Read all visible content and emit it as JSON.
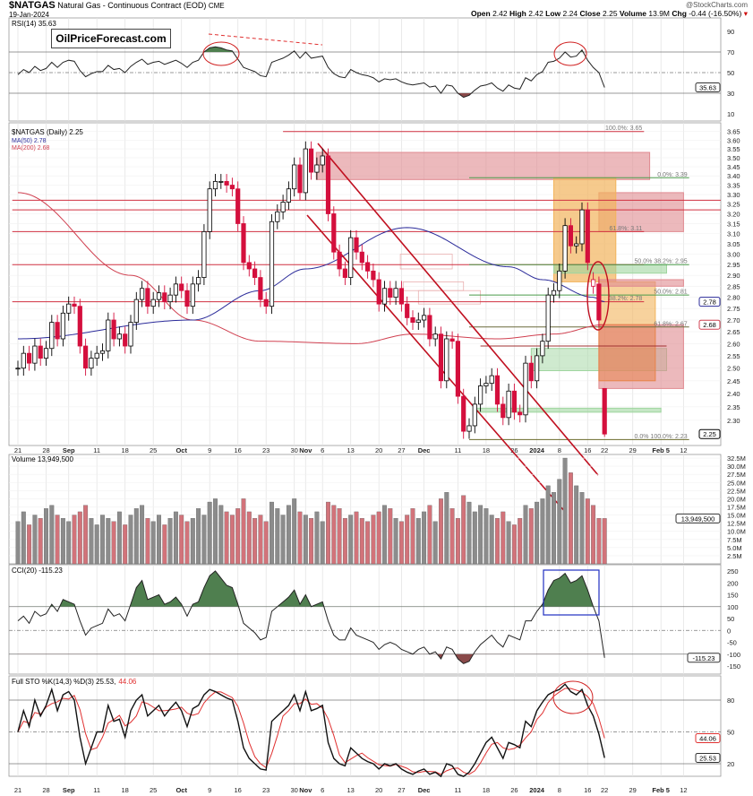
{
  "header": {
    "symbol": "$NATGAS",
    "name": "Natural Gas - Continuous Contract (EOD)",
    "exchange": "CME",
    "date": "19-Jan-2024",
    "watermark": "@StockCharts.com",
    "open_label": "Open",
    "open": "2.42",
    "high_label": "High",
    "high": "2.42",
    "low_label": "Low",
    "low": "2.24",
    "close_label": "Close",
    "close": "2.25",
    "volume_label": "Volume",
    "volume": "13.9M",
    "chg_label": "Chg",
    "chg": "-0.44 (-16.50%)"
  },
  "logo": "OilPriceForecast.com",
  "panels": {
    "rsi": {
      "label": "RSI(14) 35.63"
    },
    "price": {
      "label": "$NATGAS (Daily) 2.25",
      "ma50": "MA(50) 2.78",
      "ma200": "MA(200) 2.68"
    },
    "volume": {
      "label": "Volume 13,949,500"
    },
    "cci": {
      "label": "CCI(20) -115.23"
    },
    "sto": {
      "label": "Full STO %K(14,3) %D(3) 25.53,",
      "label_d": "44.06"
    }
  },
  "chart_data": {
    "type": "candlestick",
    "title": "$NATGAS Natural Gas - Continuous Contract (EOD) Daily",
    "x_ticks": [
      {
        "label": "21",
        "i": 0
      },
      {
        "label": "28",
        "i": 5
      },
      {
        "label": "Sep",
        "i": 9
      },
      {
        "label": "11",
        "i": 14
      },
      {
        "label": "18",
        "i": 19
      },
      {
        "label": "25",
        "i": 24
      },
      {
        "label": "Oct",
        "i": 29
      },
      {
        "label": "9",
        "i": 34
      },
      {
        "label": "16",
        "i": 39
      },
      {
        "label": "23",
        "i": 44
      },
      {
        "label": "30",
        "i": 49
      },
      {
        "label": "Nov",
        "i": 51
      },
      {
        "label": "6",
        "i": 54
      },
      {
        "label": "13",
        "i": 59
      },
      {
        "label": "20",
        "i": 64
      },
      {
        "label": "27",
        "i": 68
      },
      {
        "label": "Dec",
        "i": 72
      },
      {
        "label": "11",
        "i": 78
      },
      {
        "label": "18",
        "i": 83
      },
      {
        "label": "26",
        "i": 88
      },
      {
        "label": "2024",
        "i": 92
      },
      {
        "label": "8",
        "i": 96
      },
      {
        "label": "16",
        "i": 101
      },
      {
        "label": "22",
        "i": 104
      },
      {
        "label": "29",
        "i": 109
      },
      {
        "label": "Feb 5",
        "i": 114
      },
      {
        "label": "12",
        "i": 118
      }
    ],
    "price": {
      "scale": "log",
      "ticks": [
        "3.65",
        "3.60",
        "3.55",
        "3.50",
        "3.45",
        "3.40",
        "3.35",
        "3.30",
        "3.25",
        "3.20",
        "3.15",
        "3.10",
        "3.05",
        "3.00",
        "2.95",
        "2.90",
        "2.85",
        "2.80",
        "2.75",
        "2.70",
        "2.65",
        "2.60",
        "2.55",
        "2.50",
        "2.45",
        "2.40",
        "2.35",
        "2.30"
      ],
      "closes": [
        2.5,
        2.56,
        2.52,
        2.59,
        2.54,
        2.58,
        2.69,
        2.62,
        2.73,
        2.77,
        2.76,
        2.59,
        2.5,
        2.54,
        2.56,
        2.57,
        2.7,
        2.62,
        2.64,
        2.59,
        2.69,
        2.79,
        2.84,
        2.76,
        2.79,
        2.82,
        2.78,
        2.81,
        2.86,
        2.83,
        2.76,
        2.86,
        2.89,
        3.11,
        3.33,
        3.37,
        3.37,
        3.35,
        3.33,
        3.15,
        2.96,
        2.93,
        2.89,
        2.79,
        2.76,
        3.16,
        3.21,
        3.26,
        3.33,
        3.46,
        3.31,
        3.55,
        3.42,
        3.46,
        3.51,
        3.2,
        3.01,
        2.93,
        2.89,
        3.08,
        3.01,
        2.96,
        2.92,
        2.88,
        2.77,
        2.84,
        2.8,
        2.84,
        2.77,
        2.71,
        2.69,
        2.7,
        2.72,
        2.62,
        2.64,
        2.45,
        2.62,
        2.61,
        2.39,
        2.26,
        2.28,
        2.36,
        2.43,
        2.44,
        2.47,
        2.36,
        2.31,
        2.41,
        2.33,
        2.32,
        2.52,
        2.45,
        2.55,
        2.61,
        2.81,
        2.83,
        2.92,
        3.14,
        3.04,
        3.05,
        3.22,
        2.96,
        2.88,
        2.7,
        2.25
      ],
      "open_overrides": {
        "102": 2.85,
        "103": 2.86,
        "104": 2.42
      },
      "last_high": 2.42,
      "last_low": 2.24,
      "ma50": {
        "label": "MA(50)",
        "color": "#2b2b9a",
        "points": [
          [
            0,
            2.62
          ],
          [
            31,
            2.7
          ],
          [
            43,
            2.83
          ],
          [
            51,
            2.93
          ],
          [
            69,
            3.13
          ],
          [
            87,
            2.94
          ],
          [
            93,
            2.88
          ],
          [
            102,
            2.8
          ],
          [
            104,
            2.78
          ]
        ]
      },
      "ma200": {
        "label": "MA(200)",
        "color": "#d04050",
        "points": [
          [
            0,
            3.31
          ],
          [
            20,
            2.9
          ],
          [
            31,
            2.7
          ],
          [
            43,
            2.61
          ],
          [
            60,
            2.6
          ],
          [
            70,
            2.64
          ],
          [
            85,
            2.62
          ],
          [
            95,
            2.64
          ],
          [
            104,
            2.68
          ]
        ]
      },
      "last_labels": [
        {
          "value": "2.78",
          "p": 2.78,
          "color": "#2b2b9a"
        },
        {
          "value": "2.68",
          "p": 2.68,
          "color": "#d04050"
        },
        {
          "value": "2.25",
          "p": 2.25,
          "color": "#000000"
        }
      ],
      "zones": [
        {
          "i0": 52.9,
          "i1": 112,
          "p0": 3.38,
          "p1": 3.53,
          "color": "#e08a90",
          "opacity": 0.6
        },
        {
          "i0": 103,
          "i1": 118,
          "p0": 3.11,
          "p1": 3.31,
          "color": "#e08a90",
          "opacity": 0.6
        },
        {
          "i0": 95,
          "i1": 106,
          "p0": 2.87,
          "p1": 3.39,
          "color": "#f2b45c",
          "opacity": 0.7
        },
        {
          "i0": 103,
          "i1": 113,
          "p0": 2.68,
          "p1": 2.87,
          "color": "#f2b45c",
          "opacity": 0.6
        },
        {
          "i0": 103,
          "i1": 118,
          "p0": 2.85,
          "p1": 2.88,
          "color": "#e08a90",
          "opacity": 0.6
        },
        {
          "i0": 95,
          "i1": 115,
          "p0": 2.91,
          "p1": 2.95,
          "color": "#9fd59f",
          "opacity": 0.6
        },
        {
          "i0": 91,
          "i1": 115,
          "p0": 2.49,
          "p1": 2.58,
          "color": "#9fd59f",
          "opacity": 0.5
        },
        {
          "i0": 103,
          "i1": 118,
          "p0": 2.42,
          "p1": 2.68,
          "color": "#e08a90",
          "opacity": 0.6
        },
        {
          "i0": 103,
          "i1": 113,
          "p0": 2.45,
          "p1": 2.68,
          "color": "#e8834a",
          "opacity": 0.55
        },
        {
          "i0": 81,
          "i1": 114,
          "p0": 2.33,
          "p1": 2.345,
          "color": "#9fd59f",
          "opacity": 0.6
        }
      ],
      "outline_zones": [
        {
          "i0": 67.8,
          "i1": 77,
          "p0": 2.93,
          "p1": 3.0
        },
        {
          "i0": 68.3,
          "i1": 79,
          "p0": 2.83,
          "p1": 2.87
        },
        {
          "i0": 71,
          "i1": 82,
          "p0": 2.77,
          "p1": 2.83
        }
      ],
      "levels": [
        {
          "p": 3.27,
          "i0": -1,
          "i1": 126,
          "color": "#d03040"
        },
        {
          "p": 3.22,
          "i0": -1,
          "i1": 126,
          "color": "#d03040"
        },
        {
          "p": 3.65,
          "i0": 47,
          "i1": 111,
          "color": "#d03040",
          "label": "100.0%: 3.65"
        },
        {
          "p": 3.11,
          "i0": -1,
          "i1": 111,
          "color": "#d03040",
          "label": "61.8%: 3.11"
        },
        {
          "p": 2.95,
          "i0": -1,
          "i1": 111,
          "color": "#d03040"
        },
        {
          "p": 2.78,
          "i0": -1,
          "i1": 111,
          "color": "#d03040",
          "label": "38.2%: 2.78"
        },
        {
          "p": 3.39,
          "i0": 80,
          "i1": 119,
          "color": "#4a9a4a",
          "label": "0.0%: 3.39"
        },
        {
          "p": 2.95,
          "i0": 80,
          "i1": 119,
          "color": "#4a9a4a",
          "label": "50.0% 38.2%: 2.95"
        },
        {
          "p": 2.81,
          "i0": 80,
          "i1": 119,
          "color": "#4a9a4a",
          "label": "50.0%: 2.81"
        },
        {
          "p": 2.67,
          "i0": 80,
          "i1": 119,
          "color": "#6a6a3a",
          "label": "61.8%: 2.67"
        },
        {
          "p": 2.59,
          "i0": 82,
          "i1": 115,
          "color": "#a03030"
        },
        {
          "p": 2.23,
          "i0": 80,
          "i1": 119,
          "color": "#6a6a2a",
          "label": "0.0% 100.0%: 2.23"
        }
      ]
    },
    "volume": {
      "unit": "M",
      "ticks": [
        "32.5M",
        "30.0M",
        "27.5M",
        "25.0M",
        "22.5M",
        "20.0M",
        "17.5M",
        "15.0M",
        "12.5M",
        "10.0M",
        "7.5M",
        "5.0M",
        "2.5M"
      ],
      "last_label": "13,949,500",
      "values": [
        13,
        16,
        12,
        15,
        14,
        17,
        18,
        15,
        14,
        13,
        15,
        16,
        18,
        14,
        12,
        15,
        14,
        13,
        16,
        12,
        15,
        17,
        18,
        14,
        13,
        15,
        12,
        14,
        16,
        15,
        13,
        14,
        17,
        15,
        19,
        20,
        18,
        16,
        15,
        17,
        20,
        16,
        14,
        15,
        13,
        19,
        17,
        15,
        18,
        20,
        16,
        15,
        14,
        16,
        13,
        19,
        18,
        17,
        14,
        15,
        16,
        14,
        13,
        15,
        16,
        18,
        17,
        14,
        13,
        15,
        17,
        14,
        16,
        18,
        13,
        20,
        22,
        17,
        14,
        21,
        19,
        16,
        18,
        17,
        15,
        14,
        16,
        13,
        12,
        14,
        18,
        17,
        19,
        20,
        24,
        22,
        26,
        32.5,
        28,
        24,
        22,
        20,
        18,
        14,
        13.95
      ]
    },
    "rsi": {
      "period": 14,
      "last": "35.63",
      "ticks": [
        "90",
        "70",
        "50",
        "30",
        "10"
      ],
      "values": [
        48,
        53,
        50,
        56,
        52,
        54,
        60,
        55,
        60,
        62,
        61,
        52,
        46,
        49,
        51,
        51,
        57,
        53,
        54,
        50,
        56,
        60,
        63,
        58,
        60,
        61,
        58,
        60,
        62,
        59,
        55,
        60,
        62,
        70,
        74,
        75,
        74,
        72,
        71,
        63,
        55,
        53,
        51,
        47,
        46,
        60,
        62,
        64,
        67,
        71,
        64,
        70,
        64,
        65,
        66,
        55,
        49,
        46,
        45,
        53,
        50,
        48,
        47,
        45,
        41,
        44,
        43,
        44,
        41,
        39,
        38,
        39,
        40,
        36,
        37,
        30,
        38,
        37,
        30,
        26,
        28,
        33,
        37,
        38,
        40,
        35,
        32,
        38,
        35,
        34,
        45,
        42,
        48,
        51,
        60,
        61,
        64,
        70,
        65,
        66,
        72,
        62,
        55,
        50,
        35.63
      ]
    },
    "cci": {
      "period": 20,
      "last": "-115.23",
      "ticks": [
        "250",
        "200",
        "150",
        "100",
        "50",
        "0",
        "-50",
        "-100",
        "-150"
      ],
      "values": [
        40,
        60,
        30,
        80,
        60,
        70,
        110,
        80,
        130,
        120,
        110,
        40,
        -20,
        10,
        20,
        30,
        90,
        60,
        70,
        40,
        110,
        180,
        210,
        130,
        140,
        150,
        110,
        120,
        140,
        110,
        60,
        110,
        120,
        180,
        230,
        250,
        220,
        190,
        180,
        110,
        30,
        10,
        -10,
        -40,
        -30,
        80,
        100,
        120,
        140,
        170,
        110,
        150,
        100,
        110,
        120,
        40,
        -20,
        -40,
        -40,
        10,
        -20,
        -30,
        -40,
        -50,
        -80,
        -60,
        -50,
        -60,
        -80,
        -90,
        -100,
        -80,
        -70,
        -100,
        -90,
        -120,
        -70,
        -80,
        -120,
        -140,
        -130,
        -90,
        -60,
        -40,
        -20,
        -50,
        -70,
        -20,
        -30,
        -40,
        40,
        40,
        80,
        110,
        170,
        210,
        220,
        240,
        200,
        210,
        230,
        170,
        100,
        40,
        -115.23
      ]
    },
    "sto": {
      "k_period": 14,
      "d_period": 3,
      "last_k": "25.53",
      "last_d": "44.06",
      "ticks": [
        "80",
        "50",
        "20"
      ],
      "k": [
        50,
        70,
        55,
        80,
        65,
        75,
        90,
        70,
        85,
        88,
        80,
        45,
        20,
        35,
        50,
        50,
        75,
        60,
        62,
        45,
        70,
        80,
        85,
        65,
        70,
        75,
        65,
        72,
        78,
        70,
        55,
        72,
        75,
        85,
        90,
        88,
        85,
        82,
        80,
        60,
        35,
        25,
        20,
        15,
        14,
        60,
        65,
        70,
        75,
        85,
        70,
        88,
        70,
        72,
        75,
        40,
        25,
        20,
        18,
        35,
        30,
        25,
        22,
        20,
        15,
        20,
        18,
        20,
        15,
        12,
        10,
        13,
        15,
        10,
        12,
        8,
        20,
        18,
        10,
        8,
        12,
        20,
        30,
        40,
        45,
        35,
        25,
        40,
        38,
        35,
        60,
        55,
        70,
        78,
        85,
        88,
        90,
        95,
        88,
        85,
        90,
        75,
        65,
        48,
        25.53
      ]
    },
    "colors": {
      "up": "#000000",
      "down": "#d40f3d",
      "vol_up": "#8c8c8c",
      "vol_down": "#d2737a",
      "grid": "#e4e4e4",
      "fill_pos": "#4f7f4f",
      "fill_neg": "#8a4a4a",
      "sto_d": "#e03030"
    }
  }
}
